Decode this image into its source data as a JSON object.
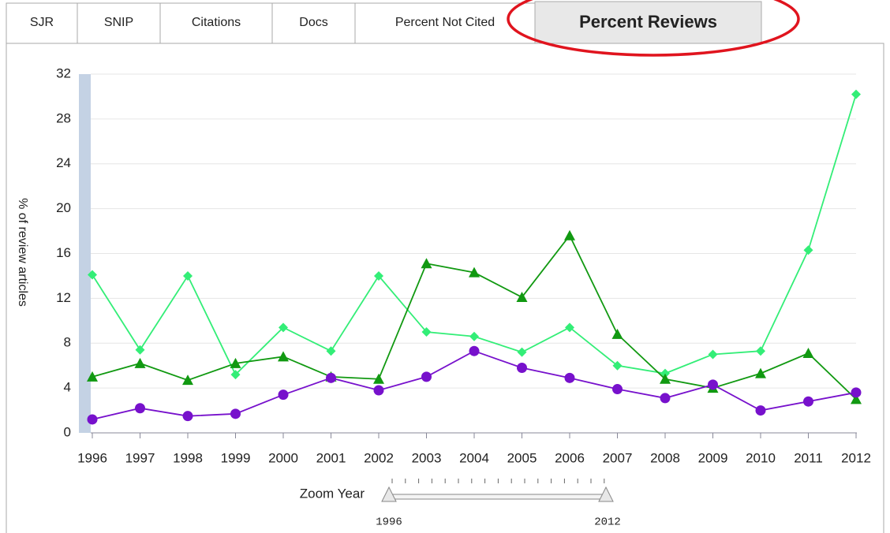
{
  "tabs": [
    "SJR",
    "SNIP",
    "Citations",
    "Docs",
    "Percent Not Cited",
    "Percent Reviews"
  ],
  "active_tab": 5,
  "chart_data": {
    "type": "line",
    "y_label": "% of review articles",
    "categories": [
      "1996",
      "1997",
      "1998",
      "1999",
      "2000",
      "2001",
      "2002",
      "2003",
      "2004",
      "2005",
      "2006",
      "2007",
      "2008",
      "2009",
      "2010",
      "2011",
      "2012"
    ],
    "series": [
      {
        "color": "#33ee77",
        "marker": "diamond",
        "values": [
          14.1,
          7.4,
          14.0,
          5.2,
          9.4,
          7.3,
          14.0,
          9.0,
          8.6,
          7.2,
          9.4,
          6.0,
          5.3,
          7.0,
          7.3,
          16.3,
          30.2
        ]
      },
      {
        "color": "#119911",
        "marker": "triangle",
        "values": [
          5.0,
          6.2,
          4.7,
          6.2,
          6.8,
          5.0,
          4.8,
          15.1,
          14.3,
          12.1,
          17.6,
          8.8,
          4.8,
          4.0,
          5.3,
          7.1,
          3.0
        ]
      },
      {
        "color": "#7711cc",
        "marker": "circle",
        "values": [
          1.2,
          2.2,
          1.5,
          1.7,
          3.4,
          4.9,
          3.8,
          5.0,
          7.3,
          5.8,
          4.9,
          3.9,
          3.1,
          4.3,
          2.0,
          2.8,
          3.6
        ]
      }
    ],
    "ylim": [
      0,
      32
    ],
    "yticks": [
      0,
      4,
      8,
      12,
      16,
      20,
      24,
      28,
      32
    ],
    "grid": true
  },
  "zoom": {
    "label": "Zoom Year",
    "start": "1996",
    "end": "2012"
  }
}
